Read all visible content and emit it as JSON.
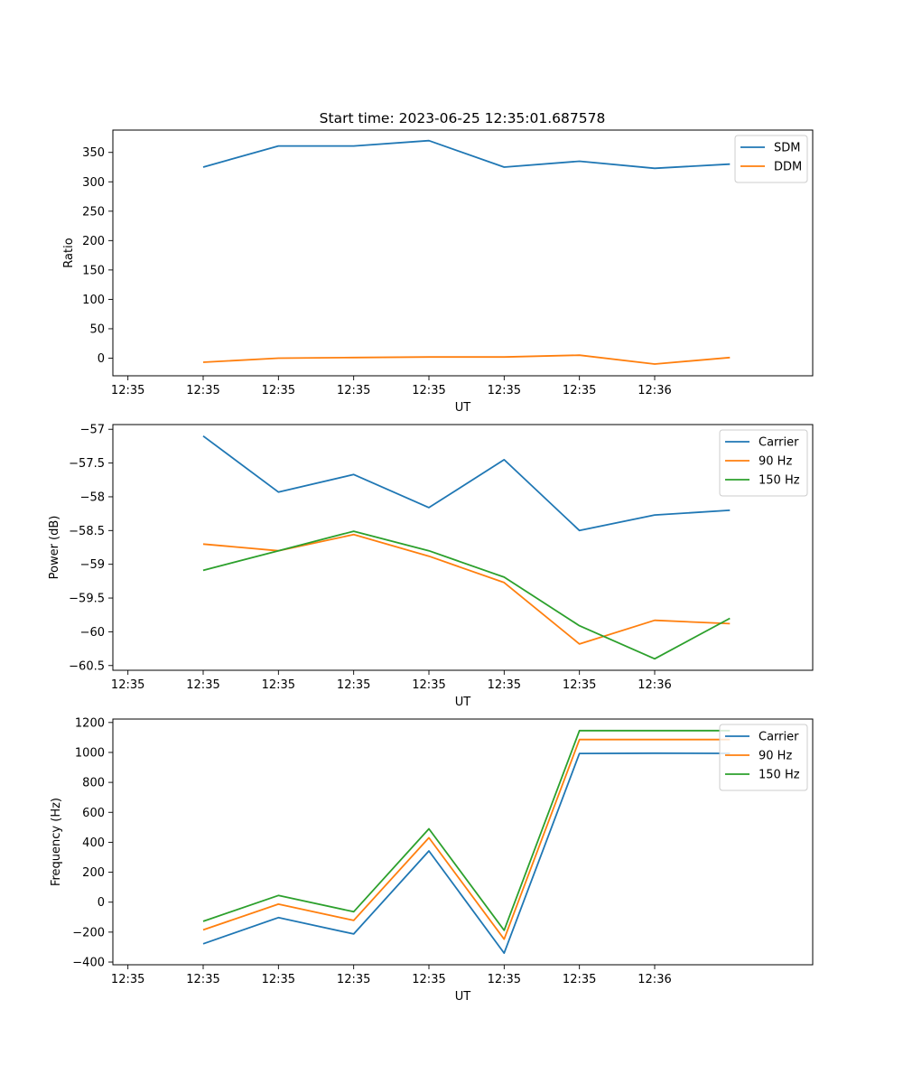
{
  "figure_title": "Start time: 2023-06-25 12:35:01.687578",
  "chart_data": [
    {
      "type": "line",
      "xlabel": "UT",
      "ylabel": "Ratio",
      "x_tick_labels": [
        "12:35",
        "12:35",
        "12:35",
        "12:35",
        "12:35",
        "12:35",
        "12:35",
        "12:36"
      ],
      "x": [
        1,
        2,
        3,
        4,
        5,
        6,
        7,
        8
      ],
      "xlim": [
        -0.2,
        9.1
      ],
      "ylim": [
        -30,
        388
      ],
      "yticks": [
        0,
        50,
        100,
        150,
        200,
        250,
        300,
        350
      ],
      "legend_position": "upper right",
      "series": [
        {
          "name": "SDM",
          "color": "#1f77b4",
          "values": [
            325,
            361,
            361,
            370,
            325,
            335,
            323,
            330
          ]
        },
        {
          "name": "DDM",
          "color": "#ff7f0e",
          "values": [
            -7,
            0,
            1,
            2,
            2,
            5,
            -10,
            1
          ]
        }
      ]
    },
    {
      "type": "line",
      "xlabel": "UT",
      "ylabel": "Power (dB)",
      "x_tick_labels": [
        "12:35",
        "12:35",
        "12:35",
        "12:35",
        "12:35",
        "12:35",
        "12:35",
        "12:36"
      ],
      "x": [
        1,
        2,
        3,
        4,
        5,
        6,
        7,
        8
      ],
      "xlim": [
        -0.2,
        9.1
      ],
      "ylim": [
        -60.57,
        -56.93
      ],
      "yticks": [
        -57.0,
        -57.5,
        -58.0,
        -58.5,
        -59.0,
        -59.5,
        -60.0,
        -60.5
      ],
      "legend_position": "upper right",
      "series": [
        {
          "name": "Carrier",
          "color": "#1f77b4",
          "values": [
            -57.1,
            -57.93,
            -57.67,
            -58.16,
            -57.45,
            -58.5,
            -58.27,
            -58.2
          ]
        },
        {
          "name": "90 Hz",
          "color": "#ff7f0e",
          "values": [
            -58.7,
            -58.8,
            -58.56,
            -58.88,
            -59.27,
            -60.18,
            -59.83,
            -59.88
          ]
        },
        {
          "name": "150 Hz",
          "color": "#2ca02c",
          "values": [
            -59.09,
            -58.8,
            -58.51,
            -58.8,
            -59.19,
            -59.91,
            -60.4,
            -59.8
          ]
        }
      ]
    },
    {
      "type": "line",
      "xlabel": "UT",
      "ylabel": "Frequency (Hz)",
      "x_tick_labels": [
        "12:35",
        "12:35",
        "12:35",
        "12:35",
        "12:35",
        "12:35",
        "12:35",
        "12:36"
      ],
      "x": [
        1,
        2,
        3,
        4,
        5,
        6,
        7,
        8
      ],
      "xlim": [
        -0.2,
        9.1
      ],
      "ylim": [
        -418,
        1223
      ],
      "yticks": [
        -400,
        -200,
        0,
        200,
        400,
        600,
        800,
        1000,
        1200
      ],
      "legend_position": "upper right",
      "series": [
        {
          "name": "Carrier",
          "color": "#1f77b4",
          "values": [
            -278,
            -103,
            -212,
            342,
            -340,
            993,
            995,
            994
          ]
        },
        {
          "name": "90 Hz",
          "color": "#ff7f0e",
          "values": [
            -185,
            -13,
            -122,
            430,
            -247,
            1086,
            1086,
            1086
          ]
        },
        {
          "name": "150 Hz",
          "color": "#2ca02c",
          "values": [
            -128,
            45,
            -64,
            490,
            -188,
            1146,
            1146,
            1146
          ]
        }
      ]
    }
  ]
}
